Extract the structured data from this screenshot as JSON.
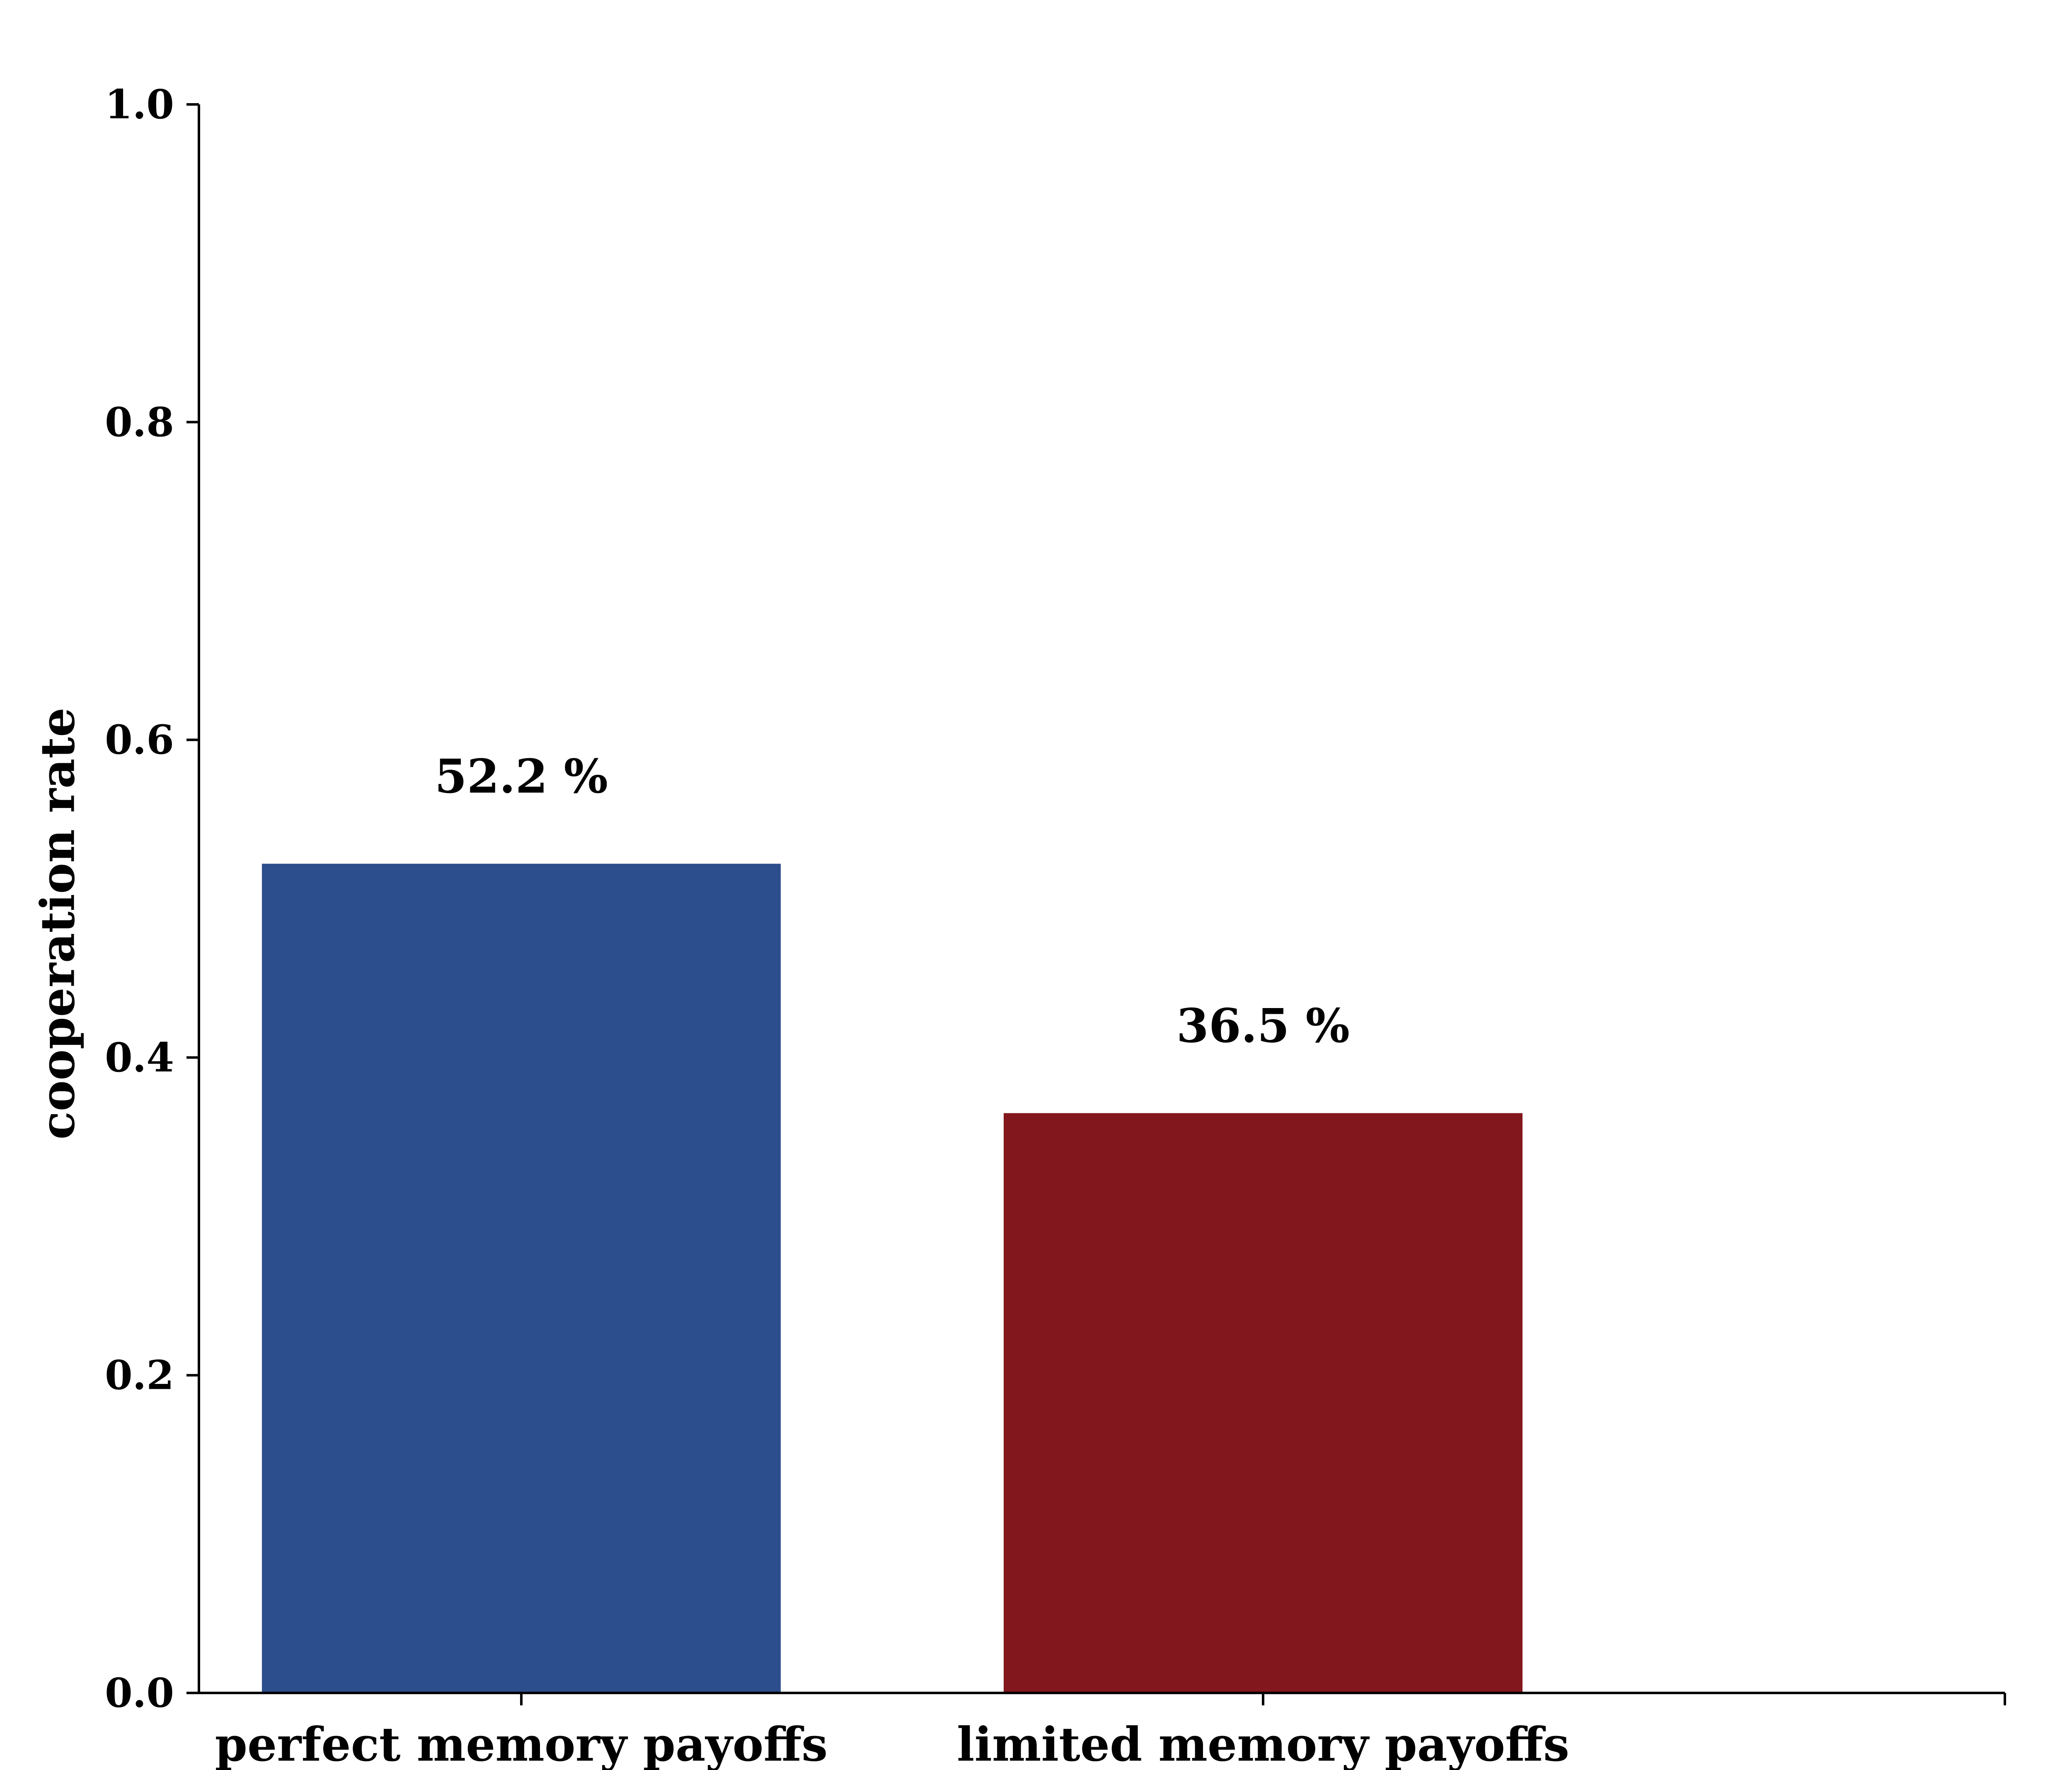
{
  "chart_data": {
    "type": "bar",
    "categories": [
      "perfect memory payoffs",
      "limited memory payoffs"
    ],
    "values": [
      0.522,
      0.365
    ],
    "data_labels": [
      "52.2 %",
      "36.5 %"
    ],
    "colors": [
      "#2d4e8c",
      "#82181d"
    ],
    "title": "",
    "xlabel": "",
    "ylabel": "cooperation rate",
    "ylim": [
      0,
      1.0
    ],
    "yticks": [
      0.0,
      0.2,
      0.4,
      0.6,
      0.8,
      1.0
    ],
    "ytick_labels": [
      "0.0",
      "0.2",
      "0.4",
      "0.6",
      "0.8",
      "1.0"
    ],
    "grid": false,
    "legend": "none"
  }
}
